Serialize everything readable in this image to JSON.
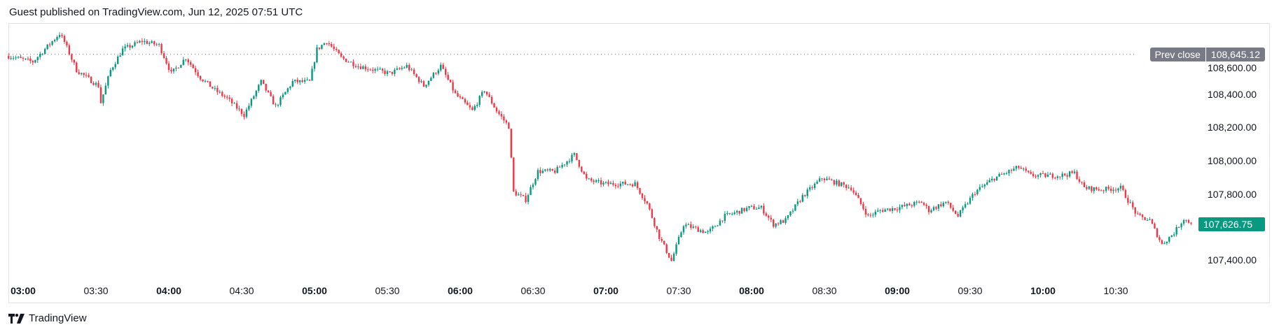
{
  "header": {
    "text": "Guest published on TradingView.com, Jun 12, 2025 07:51 UTC"
  },
  "price_axis": {
    "ticks": [
      "108,600.00",
      "108,400.00",
      "108,200.00",
      "108,000.00",
      "107,800.00",
      "107,400.00"
    ]
  },
  "time_axis": {
    "ticks": [
      {
        "label": "03:00",
        "bold": true
      },
      {
        "label": "03:30",
        "bold": false
      },
      {
        "label": "04:00",
        "bold": true
      },
      {
        "label": "04:30",
        "bold": false
      },
      {
        "label": "05:00",
        "bold": true
      },
      {
        "label": "05:30",
        "bold": false
      },
      {
        "label": "06:00",
        "bold": true
      },
      {
        "label": "06:30",
        "bold": false
      },
      {
        "label": "07:00",
        "bold": true
      },
      {
        "label": "07:30",
        "bold": false
      },
      {
        "label": "08:00",
        "bold": true
      },
      {
        "label": "08:30",
        "bold": false
      },
      {
        "label": "09:00",
        "bold": true
      },
      {
        "label": "09:30",
        "bold": false
      },
      {
        "label": "10:00",
        "bold": true
      },
      {
        "label": "10:30",
        "bold": false
      }
    ]
  },
  "prev_close": {
    "label": "Prev close",
    "value": "108,645.12",
    "color": "#787b86"
  },
  "last_price": {
    "value": "107,626.75",
    "color": "#089981"
  },
  "colors": {
    "up": "#089981",
    "down": "#f23645"
  },
  "logo": {
    "text": "TradingView",
    "icon": "tradingview-logo-icon"
  },
  "chart_data": {
    "type": "candlestick",
    "interval": "1 minute",
    "prev_close": 108645.12,
    "last": 107626.75,
    "ylim": [
      107300,
      108800
    ],
    "approx_close_path": [
      [
        "02:54",
        108635
      ],
      [
        "03:04",
        108600
      ],
      [
        "03:15",
        108770
      ],
      [
        "03:17",
        108720
      ],
      [
        "03:22",
        108550
      ],
      [
        "03:31",
        108455
      ],
      [
        "03:32",
        108355
      ],
      [
        "03:36",
        108550
      ],
      [
        "03:41",
        108675
      ],
      [
        "03:49",
        108725
      ],
      [
        "03:56",
        108700
      ],
      [
        "04:01",
        108530
      ],
      [
        "04:07",
        108625
      ],
      [
        "04:13",
        108505
      ],
      [
        "04:19",
        108430
      ],
      [
        "04:24",
        108380
      ],
      [
        "04:31",
        108280
      ],
      [
        "04:38",
        108480
      ],
      [
        "04:44",
        108330
      ],
      [
        "04:51",
        108480
      ],
      [
        "04:58",
        108480
      ],
      [
        "05:01",
        108675
      ],
      [
        "05:05",
        108725
      ],
      [
        "05:11",
        108625
      ],
      [
        "05:18",
        108575
      ],
      [
        "05:31",
        108530
      ],
      [
        "05:38",
        108575
      ],
      [
        "05:45",
        108455
      ],
      [
        "05:52",
        108575
      ],
      [
        "05:58",
        108405
      ],
      [
        "06:05",
        108305
      ],
      [
        "06:10",
        108430
      ],
      [
        "06:15",
        108305
      ],
      [
        "06:20",
        108210
      ],
      [
        "06:22",
        107815
      ],
      [
        "06:27",
        107770
      ],
      [
        "06:32",
        107940
      ],
      [
        "06:39",
        107940
      ],
      [
        "06:47",
        108040
      ],
      [
        "06:52",
        107890
      ],
      [
        "06:59",
        107865
      ],
      [
        "07:12",
        107865
      ],
      [
        "07:17",
        107745
      ],
      [
        "07:22",
        107545
      ],
      [
        "07:27",
        107400
      ],
      [
        "07:32",
        107620
      ],
      [
        "07:42",
        107570
      ],
      [
        "07:49",
        107670
      ],
      [
        "07:59",
        107720
      ],
      [
        "08:04",
        107720
      ],
      [
        "08:09",
        107620
      ],
      [
        "08:14",
        107645
      ],
      [
        "08:21",
        107790
      ],
      [
        "08:29",
        107900
      ],
      [
        "08:36",
        107865
      ],
      [
        "08:41",
        107840
      ],
      [
        "08:48",
        107670
      ],
      [
        "08:53",
        107705
      ],
      [
        "09:00",
        107720
      ],
      [
        "09:10",
        107755
      ],
      [
        "09:13",
        107705
      ],
      [
        "09:20",
        107755
      ],
      [
        "09:25",
        107670
      ],
      [
        "09:32",
        107815
      ],
      [
        "09:40",
        107900
      ],
      [
        "09:50",
        107965
      ],
      [
        "09:55",
        107915
      ],
      [
        "10:07",
        107915
      ],
      [
        "10:13",
        107930
      ],
      [
        "10:17",
        107840
      ],
      [
        "10:24",
        107830
      ],
      [
        "10:32",
        107840
      ],
      [
        "10:39",
        107670
      ],
      [
        "10:44",
        107645
      ],
      [
        "10:49",
        107500
      ],
      [
        "10:54",
        107570
      ],
      [
        "10:58",
        107655
      ],
      [
        "11:01",
        107627
      ]
    ]
  }
}
